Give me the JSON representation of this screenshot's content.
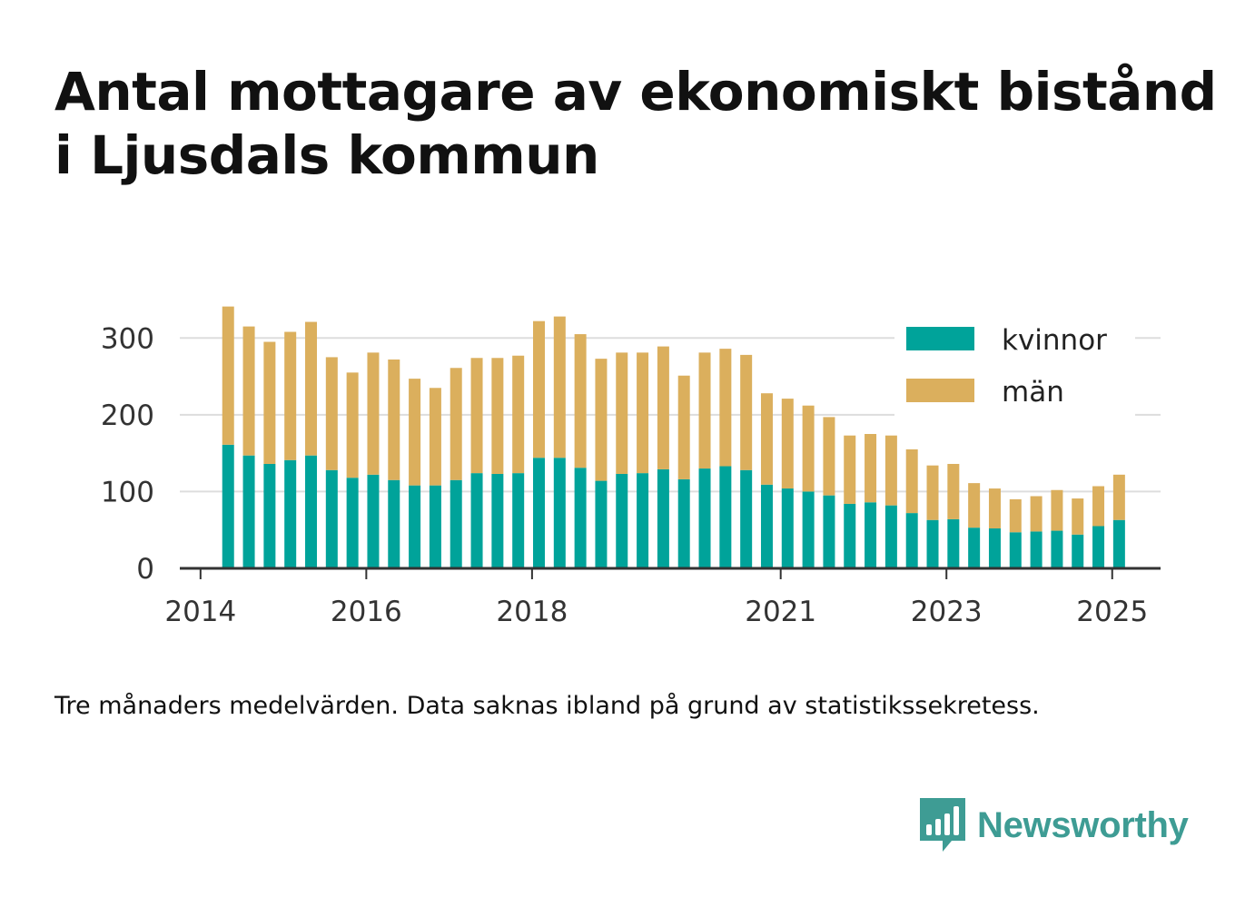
{
  "title": "Antal mottagare av ekonomiskt bistånd i Ljusdals kommun",
  "note": "Tre månaders medelvärden. Data saknas ibland på grund av statistikssekretess.",
  "brand": {
    "name": "Newsworthy",
    "icon": "newsworthy-logo-icon"
  },
  "colors": {
    "kvinnor": "#00a39a",
    "man": "#dbaf5d",
    "grid": "#dddddd",
    "axis": "#333333",
    "brand": "#3e9c94"
  },
  "chart_data": {
    "type": "bar",
    "stacked": true,
    "title": "Antal mottagare av ekonomiskt bistånd i Ljusdals kommun",
    "xlabel": "",
    "ylabel": "",
    "ylim": [
      0,
      350
    ],
    "xlim": [
      "2013-10",
      "2025-08"
    ],
    "yticks": [
      0,
      100,
      200,
      300
    ],
    "xticks": [
      {
        "label": "2014",
        "date": "2014-01"
      },
      {
        "label": "2016",
        "date": "2016-01"
      },
      {
        "label": "2018",
        "date": "2018-01"
      },
      {
        "label": "2021",
        "date": "2021-01"
      },
      {
        "label": "2023",
        "date": "2023-01"
      },
      {
        "label": "2025",
        "date": "2025-01"
      }
    ],
    "grid": true,
    "legend_position": "top-right",
    "x": [
      "2014-05",
      "2014-08",
      "2014-11",
      "2015-02",
      "2015-05",
      "2015-08",
      "2015-11",
      "2016-02",
      "2016-05",
      "2016-08",
      "2016-11",
      "2017-02",
      "2017-05",
      "2017-08",
      "2017-11",
      "2018-02",
      "2018-05",
      "2018-08",
      "2018-11",
      "2019-02",
      "2019-05",
      "2019-08",
      "2019-11",
      "2020-02",
      "2020-05",
      "2020-08",
      "2020-11",
      "2021-02",
      "2021-05",
      "2021-08",
      "2021-11",
      "2022-02",
      "2022-05",
      "2022-08",
      "2022-11",
      "2023-02",
      "2023-05",
      "2023-08",
      "2023-11",
      "2024-02",
      "2024-05",
      "2024-08",
      "2024-11",
      "2025-02"
    ],
    "series": [
      {
        "name": "kvinnor",
        "color": "#00a39a",
        "values": [
          161,
          147,
          136,
          141,
          147,
          128,
          118,
          122,
          115,
          108,
          108,
          115,
          124,
          123,
          124,
          144,
          144,
          131,
          114,
          123,
          124,
          129,
          116,
          130,
          133,
          128,
          109,
          104,
          100,
          95,
          84,
          86,
          82,
          72,
          63,
          64,
          53,
          52,
          47,
          48,
          49,
          44,
          55,
          63
        ]
      },
      {
        "name": "män",
        "color": "#dbaf5d",
        "values": [
          180,
          168,
          159,
          167,
          174,
          147,
          137,
          159,
          157,
          139,
          127,
          146,
          150,
          151,
          153,
          178,
          184,
          174,
          159,
          158,
          157,
          160,
          135,
          151,
          153,
          150,
          119,
          117,
          112,
          102,
          89,
          89,
          91,
          83,
          71,
          72,
          58,
          52,
          43,
          46,
          53,
          47,
          52,
          59
        ]
      }
    ]
  }
}
